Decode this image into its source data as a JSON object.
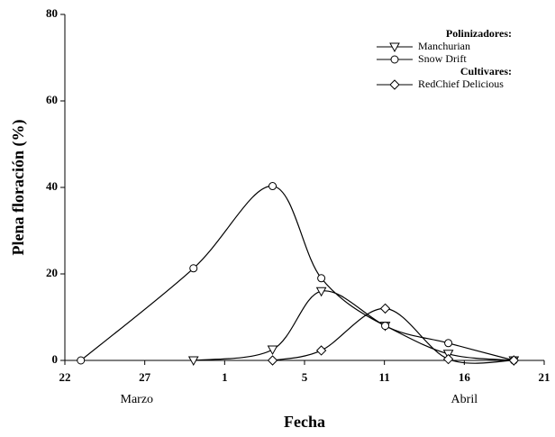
{
  "chart_data": {
    "type": "line",
    "xlabel": "Fecha",
    "ylabel": "Plena floración (%)",
    "xlim": [
      0,
      6
    ],
    "xticks": [
      {
        "value": 0,
        "label": "22"
      },
      {
        "value": 1,
        "label": "27"
      },
      {
        "value": 2,
        "label": "1"
      },
      {
        "value": 3,
        "label": "5"
      },
      {
        "value": 4,
        "label": "11"
      },
      {
        "value": 5,
        "label": "16"
      },
      {
        "value": 6,
        "label": "21"
      }
    ],
    "ylim": [
      0,
      80
    ],
    "yticks": [
      0,
      20,
      40,
      60,
      80
    ],
    "annotations": [
      {
        "text": "Marzo",
        "x": 0.9
      },
      {
        "text": "Abril",
        "x": 5
      }
    ],
    "legend_headings": [
      "Polinizadores:",
      "Cultivares:"
    ],
    "legend_position": "upper right",
    "series": [
      {
        "name": "Manchurian",
        "color": "#000000",
        "marker": "triangle-down",
        "x": [
          1.61,
          2.6,
          3.21,
          4.01,
          4.8,
          5.62
        ],
        "values": [
          0,
          2.5,
          16,
          8,
          1.5,
          0
        ]
      },
      {
        "name": "Snow Drift",
        "color": "#000000",
        "marker": "circle",
        "x": [
          0.2,
          1.61,
          2.6,
          3.21,
          4.01,
          4.8,
          5.62
        ],
        "values": [
          0,
          21.3,
          40.3,
          19,
          8,
          4,
          0
        ]
      },
      {
        "name": "RedChief Delicious",
        "color": "#000000",
        "marker": "diamond",
        "x": [
          2.6,
          3.21,
          4.01,
          4.8,
          5.62
        ],
        "values": [
          0,
          2.3,
          12,
          0.3,
          0
        ]
      }
    ]
  }
}
